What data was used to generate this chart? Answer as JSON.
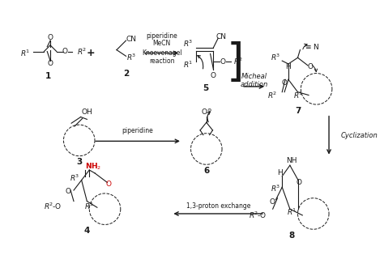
{
  "bg_color": "#ffffff",
  "text_color": "#1a1a1a",
  "red_color": "#cc0000",
  "fig_width": 4.74,
  "fig_height": 3.15,
  "dpi": 100,
  "compounds": {
    "1_label": "1",
    "2_label": "2",
    "3_label": "3",
    "4_label": "4",
    "5_label": "5",
    "6_label": "6",
    "7_label": "7",
    "8_label": "8"
  },
  "arrow_labels": {
    "top": [
      "piperidine",
      "MeCN",
      "Knoevenagel",
      "reaction"
    ],
    "middle": [
      "Micheal",
      "addition"
    ],
    "right": [
      "Cyclization"
    ],
    "bottom": [
      "1,3-proton exchange"
    ],
    "left_mid": [
      "piperidine"
    ]
  }
}
